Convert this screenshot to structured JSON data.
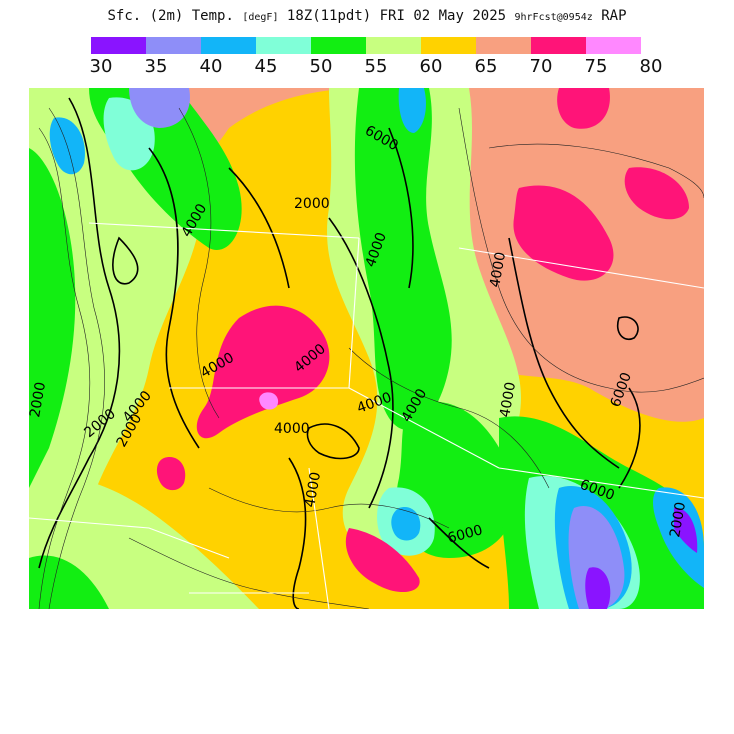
{
  "title": {
    "main_a": "Sfc. (2m) Temp.",
    "unit": "[degF]",
    "main_b": "18Z(11pdt) FRI 02 May 2025",
    "forecast": "9hrFcst@0954z",
    "model": "RAP"
  },
  "legend": {
    "ticks": [
      "30",
      "35",
      "40",
      "45",
      "50",
      "55",
      "60",
      "65",
      "70",
      "75",
      "80"
    ],
    "colors": [
      "#8a14ff",
      "#8e8ef8",
      "#12b5f8",
      "#80ffd8",
      "#12ee12",
      "#c8ff80",
      "#ffd200",
      "#f8a080",
      "#ff1478",
      "#ff88ff"
    ]
  },
  "map": {
    "fill_default": "#f8a080",
    "contour_labels": [
      "6000",
      "4000",
      "2000",
      "4000",
      "4000",
      "2000",
      "2000",
      "4000",
      "4000",
      "4000",
      "4000",
      "4000",
      "4000",
      "6000",
      "6000",
      "6000",
      "2000",
      "4000",
      "4000",
      "2000"
    ]
  }
}
